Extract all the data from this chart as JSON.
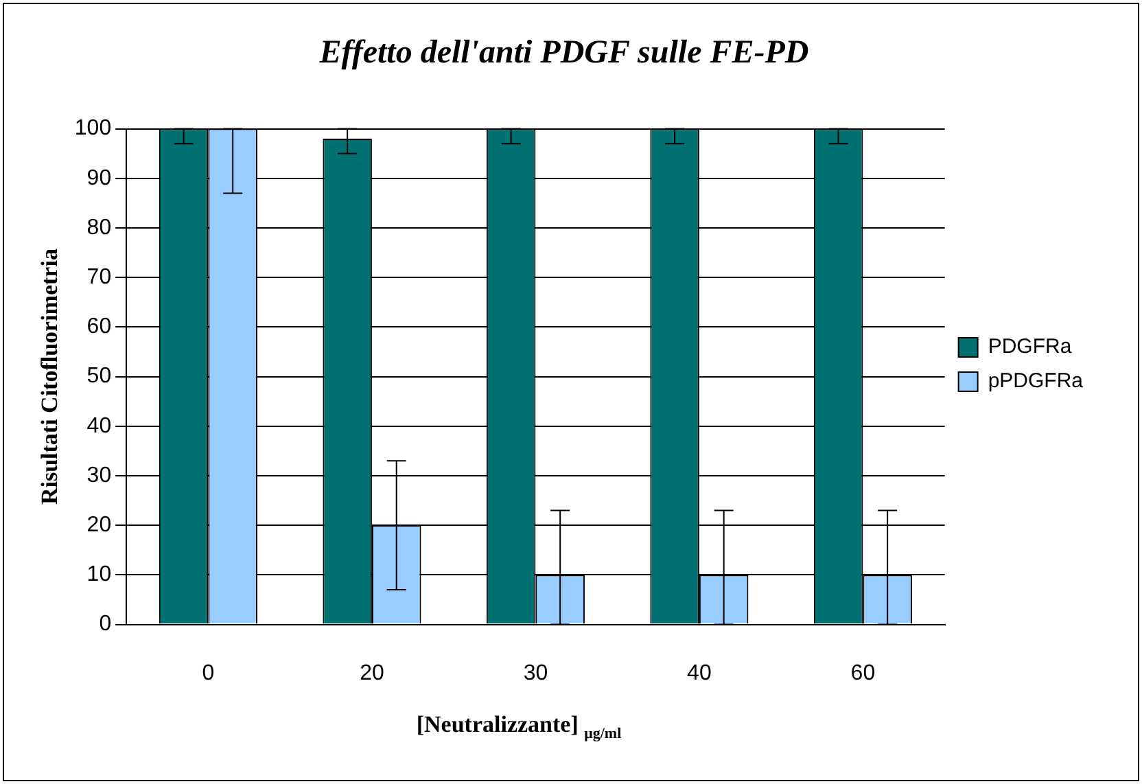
{
  "chart_data": {
    "type": "bar",
    "title": "Effetto dell'anti PDGF sulle FE-PD",
    "xlabel": "[Neutralizzante] $_{μg/ml}$",
    "ylabel": "Risultati Citofluorimetria",
    "categories": [
      "0",
      "20",
      "30",
      "40",
      "60"
    ],
    "series": [
      {
        "name": "PDGFRa",
        "color": "#007070",
        "values": [
          100,
          98,
          100,
          100,
          100
        ],
        "errors": [
          [
            97,
            100
          ],
          [
            95,
            100
          ],
          [
            97,
            100
          ],
          [
            97,
            100
          ],
          [
            97,
            100
          ]
        ]
      },
      {
        "name": "pPDGFRa",
        "color": "#99ccff",
        "values": [
          100,
          20,
          10,
          10,
          10
        ],
        "errors": [
          [
            87,
            100
          ],
          [
            7,
            33
          ],
          [
            0,
            23
          ],
          [
            0,
            23
          ],
          [
            0,
            23
          ]
        ]
      }
    ],
    "ylim": [
      0,
      100
    ],
    "yticks": [
      0,
      10,
      20,
      30,
      40,
      50,
      60,
      70,
      80,
      90,
      100
    ],
    "grid": "y",
    "legend": "right"
  }
}
